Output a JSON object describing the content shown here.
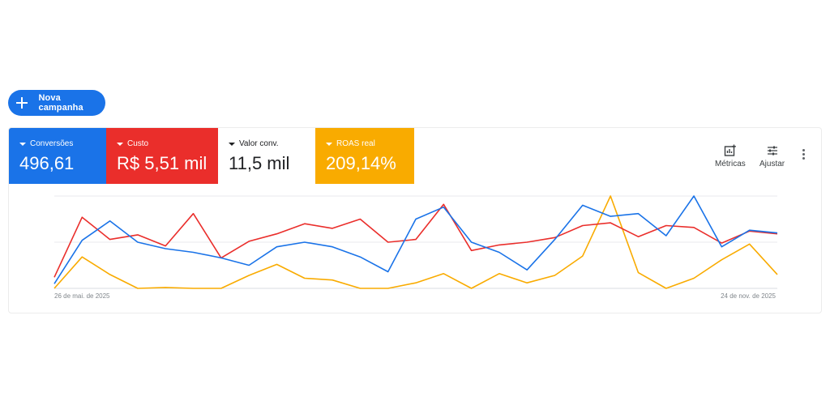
{
  "toolbar": {
    "new_campaign_label": "Nova campanha"
  },
  "metrics": [
    {
      "name": "Conversões",
      "value": "496,61",
      "color": "#1a73e8"
    },
    {
      "name": "Custo",
      "value": "R$ 5,51 mil",
      "color": "#ea2e2b"
    },
    {
      "name": "Valor conv.",
      "value": "11,5 mil",
      "color": "#ffffff"
    },
    {
      "name": "ROAS real",
      "value": "209,14%",
      "color": "#f9ab00"
    }
  ],
  "actions": {
    "metrics_label": "Métricas",
    "adjust_label": "Ajustar"
  },
  "icons": {
    "new": "plus-icon",
    "metrics": "chart-add-icon",
    "adjust": "tune-icon",
    "more": "more-vert-icon"
  },
  "chart_data": {
    "type": "line",
    "x_start_label": "26 de mai. de 2025",
    "x_end_label": "24 de nov. de 2025",
    "grid": true,
    "series": [
      {
        "color": "#1a73e8",
        "values": [
          0.05,
          0.52,
          0.73,
          0.5,
          0.43,
          0.39,
          0.33,
          0.25,
          0.45,
          0.5,
          0.45,
          0.34,
          0.18,
          0.75,
          0.88,
          0.5,
          0.39,
          0.2,
          0.53,
          0.9,
          0.78,
          0.81,
          0.57,
          1.0,
          0.45,
          0.63,
          0.6
        ]
      },
      {
        "color": "#ea2e2b",
        "values": [
          0.12,
          0.77,
          0.53,
          0.58,
          0.46,
          0.81,
          0.33,
          0.51,
          0.59,
          0.7,
          0.65,
          0.75,
          0.5,
          0.53,
          0.91,
          0.41,
          0.47,
          0.5,
          0.55,
          0.68,
          0.71,
          0.56,
          0.68,
          0.66,
          0.49,
          0.62,
          0.59
        ]
      },
      {
        "color": "#f9ab00",
        "values": [
          0.0,
          0.34,
          0.15,
          0.0,
          0.01,
          0.0,
          0.0,
          0.14,
          0.26,
          0.11,
          0.09,
          0.0,
          0.0,
          0.06,
          0.16,
          0.0,
          0.16,
          0.06,
          0.14,
          0.35,
          1.0,
          0.17,
          0.0,
          0.11,
          0.31,
          0.48,
          0.15
        ]
      }
    ]
  }
}
